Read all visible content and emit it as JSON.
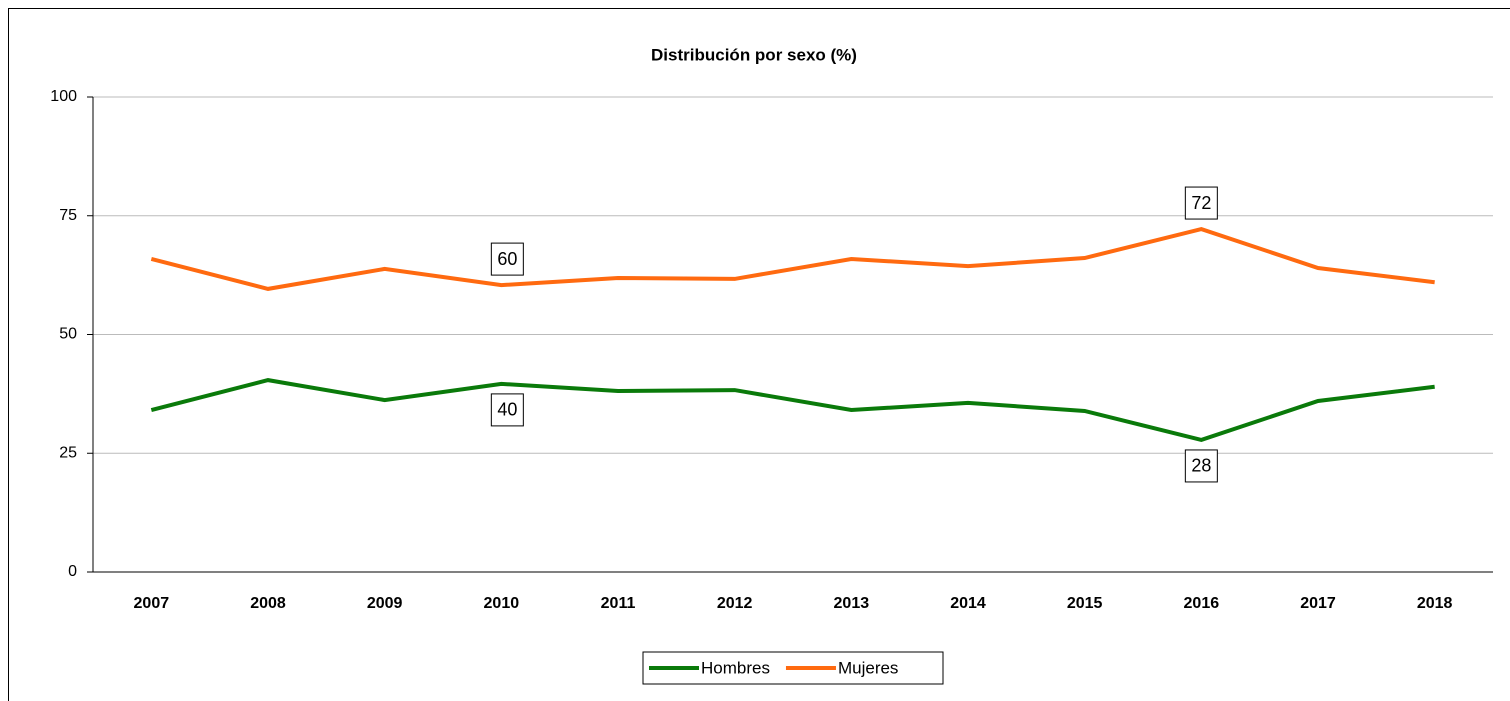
{
  "chart_data": {
    "type": "line",
    "title": "Distribución por sexo (%)",
    "categories": [
      "2007",
      "2008",
      "2009",
      "2010",
      "2011",
      "2012",
      "2013",
      "2014",
      "2015",
      "2016",
      "2017",
      "2018"
    ],
    "series": [
      {
        "name": "Hombres",
        "color": "#0a7a0a",
        "values": [
          34.1,
          40.4,
          36.2,
          39.6,
          38.1,
          38.3,
          34.1,
          35.6,
          33.9,
          27.8,
          36.0,
          39.0
        ],
        "value_labels": [
          null,
          null,
          null,
          "40",
          null,
          null,
          null,
          null,
          null,
          "28",
          null,
          null
        ]
      },
      {
        "name": "Mujeres",
        "color": "#ff6a10",
        "values": [
          65.9,
          59.6,
          63.8,
          60.4,
          61.9,
          61.7,
          65.9,
          64.4,
          66.1,
          72.2,
          64.0,
          61.0
        ],
        "value_labels": [
          null,
          null,
          null,
          "60",
          null,
          null,
          null,
          null,
          null,
          "72",
          null,
          null
        ]
      }
    ],
    "ylim": [
      0,
      100
    ],
    "yticks": [
      0,
      25,
      50,
      75,
      100
    ],
    "grid": true,
    "legend": "bottom"
  }
}
